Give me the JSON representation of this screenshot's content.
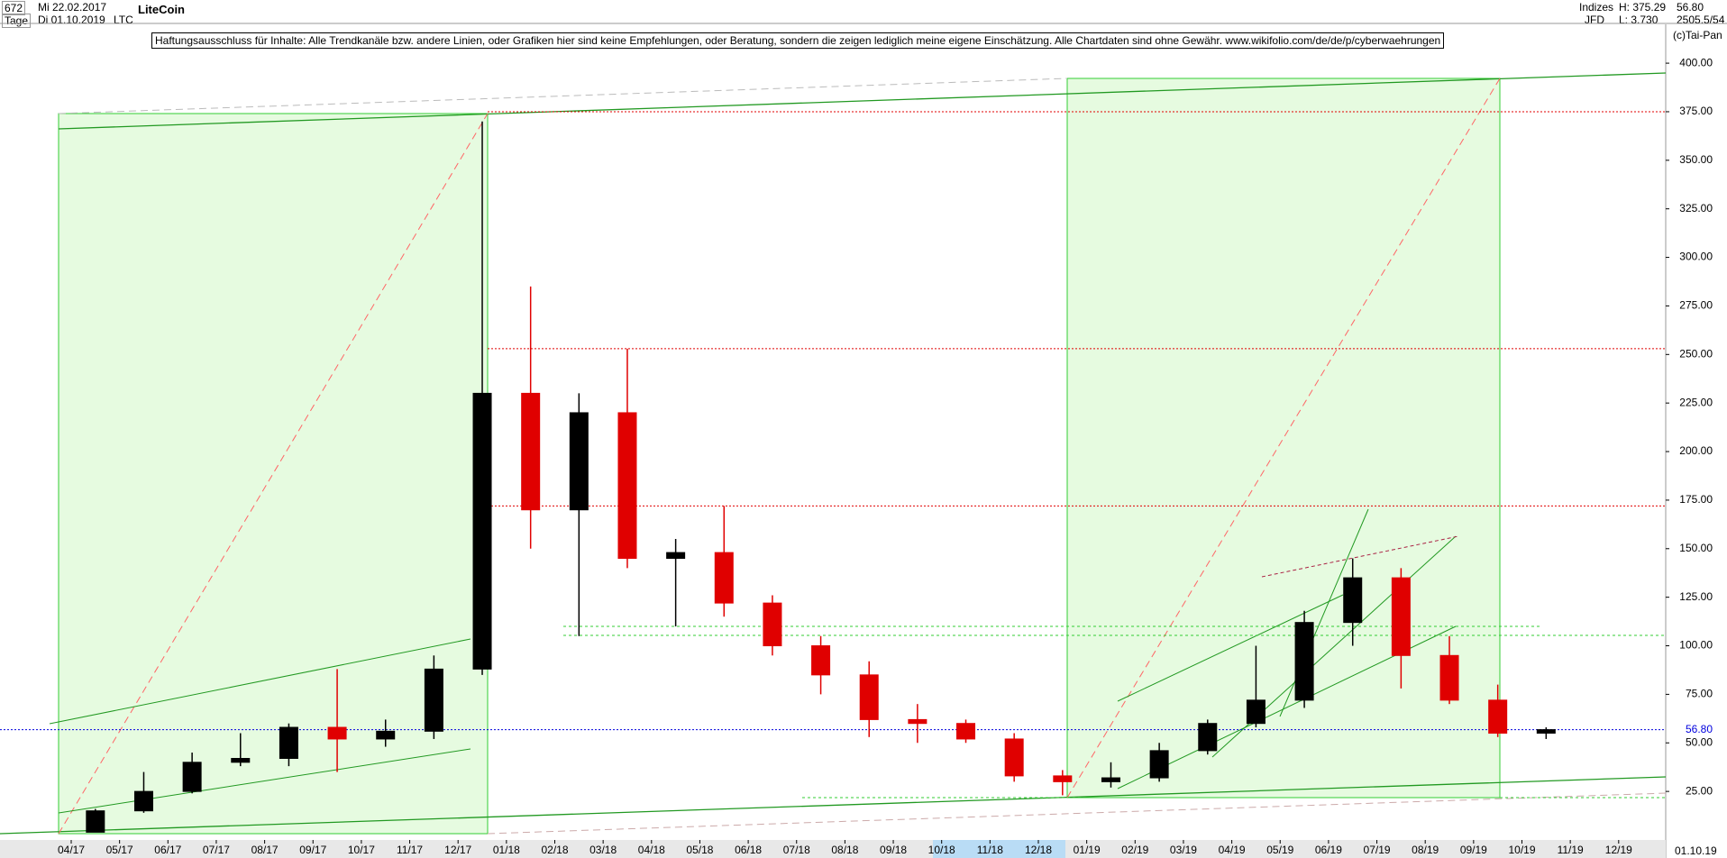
{
  "header": {
    "count": "672",
    "start_date": "Mi 22.02.2017",
    "period": "Tage",
    "end_date": "Di 01.10.2019",
    "title": "LiteCoin",
    "symbol": "LTC",
    "disclaimer": "Haftungsausschluss für Inhalte: Alle Trendkanäle bzw. andere Linien, oder Grafiken hier sind keine Empfehlungen, oder Beratung, sondern die zeigen lediglich meine eigene Einschätzung. Alle Chartdaten sind ohne Gewähr.  www.wikifolio.com/de/de/p/cyberwaehrungen",
    "group": "Indizes",
    "source": "JFD",
    "high": "H: 375.29",
    "low": "L: 3.730",
    "last": "56.80",
    "info": "2505.5/54",
    "copyright": "(c)Tai-Pan",
    "footer_date": "01.10.19",
    "footer_mode": "L"
  },
  "chart_data": {
    "type": "candlestick",
    "categories": [
      "04/17",
      "05/17",
      "06/17",
      "07/17",
      "08/17",
      "09/17",
      "10/17",
      "11/17",
      "12/17",
      "01/18",
      "02/18",
      "03/18",
      "04/18",
      "05/18",
      "06/18",
      "07/18",
      "08/18",
      "09/18",
      "10/18",
      "11/18",
      "12/18",
      "01/19",
      "02/19",
      "03/19",
      "04/19",
      "05/19",
      "06/19",
      "07/19",
      "08/19",
      "09/19",
      "10/19",
      "11/19",
      "12/19"
    ],
    "open": [
      4,
      15,
      25,
      40,
      42,
      58,
      52,
      56,
      88,
      230,
      170,
      220,
      145,
      148,
      122,
      100,
      85,
      62,
      60,
      52,
      33,
      30,
      32,
      46,
      60,
      72,
      112,
      135,
      95,
      72,
      55,
      null,
      null
    ],
    "high": [
      16,
      35,
      45,
      55,
      60,
      88,
      62,
      95,
      370,
      285,
      230,
      253,
      155,
      172,
      126,
      105,
      92,
      70,
      62,
      55,
      36,
      40,
      50,
      62,
      100,
      118,
      145,
      140,
      105,
      80,
      58,
      null,
      null
    ],
    "low": [
      4,
      14,
      24,
      38,
      38,
      35,
      48,
      52,
      85,
      150,
      105,
      140,
      110,
      115,
      95,
      75,
      53,
      50,
      50,
      30,
      23,
      27,
      30,
      44,
      58,
      68,
      100,
      78,
      70,
      53,
      52,
      null,
      null
    ],
    "close": [
      15,
      25,
      40,
      42,
      58,
      52,
      56,
      88,
      230,
      170,
      220,
      145,
      148,
      122,
      100,
      85,
      62,
      60,
      52,
      33,
      30,
      32,
      46,
      60,
      72,
      112,
      135,
      95,
      72,
      55,
      56.8,
      null,
      null
    ],
    "up_color": "#000000",
    "down_color": "#e00000",
    "ylim": [
      0,
      420
    ],
    "yticks": [
      {
        "value": 25,
        "label": "25.00"
      },
      {
        "value": 50,
        "label": "50.00"
      },
      {
        "value": 75,
        "label": "75.00"
      },
      {
        "value": 100,
        "label": "100.00"
      },
      {
        "value": 125,
        "label": "125.00"
      },
      {
        "value": 150,
        "label": "150.00"
      },
      {
        "value": 175,
        "label": "175.00"
      },
      {
        "value": 200,
        "label": "200.00"
      },
      {
        "value": 225,
        "label": "225.00"
      },
      {
        "value": 250,
        "label": "250.00"
      },
      {
        "value": 275,
        "label": "275.00"
      },
      {
        "value": 300,
        "label": "300.00"
      },
      {
        "value": 325,
        "label": "325.00"
      },
      {
        "value": 350,
        "label": "350.00"
      },
      {
        "value": 375,
        "label": "375.00"
      },
      {
        "value": 400,
        "label": "400.00"
      }
    ],
    "hlines": [
      {
        "value": 375,
        "color": "#e00000"
      },
      {
        "value": 253,
        "color": "#e00000"
      },
      {
        "value": 172,
        "color": "#e00000"
      },
      {
        "value": 56.8,
        "label": "56.80",
        "color": "#0000dd"
      }
    ]
  }
}
